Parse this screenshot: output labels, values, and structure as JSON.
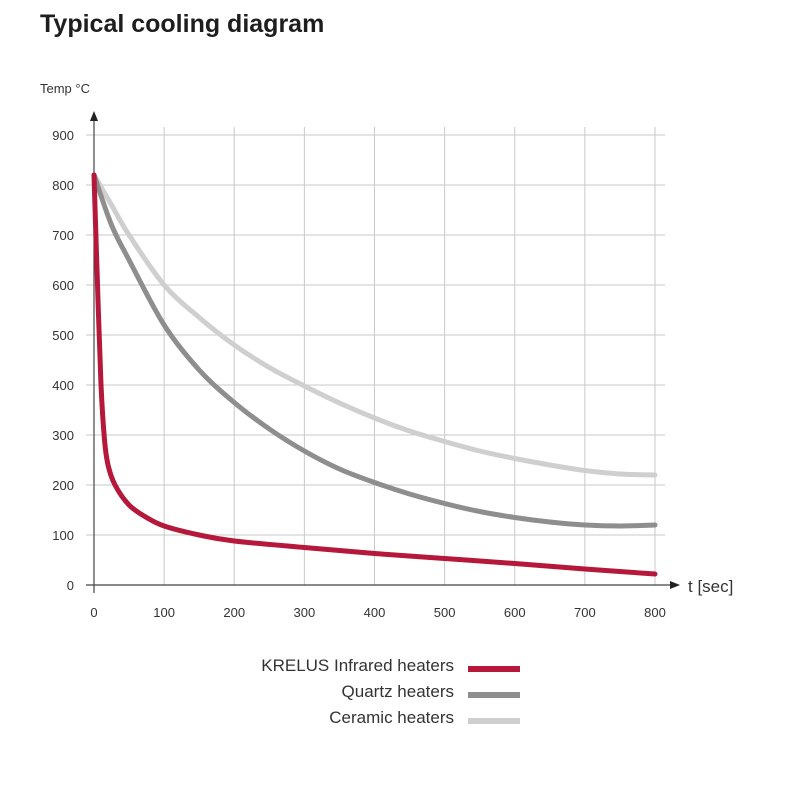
{
  "page": {
    "title": "Typical cooling diagram"
  },
  "chart_data": {
    "type": "line",
    "title": "Typical cooling diagram",
    "ylabel": "Temp °C",
    "xlabel": "t [sec]",
    "xlim": [
      0,
      800
    ],
    "ylim": [
      0,
      900
    ],
    "xticks": [
      0,
      100,
      200,
      300,
      400,
      500,
      600,
      700,
      800
    ],
    "yticks": [
      0,
      100,
      200,
      300,
      400,
      500,
      600,
      700,
      800,
      900
    ],
    "grid": true,
    "legend_position": "bottom",
    "series": [
      {
        "name": "KRELUS Infrared heaters",
        "color": "#b5183a",
        "x": [
          0,
          5,
          10,
          15,
          20,
          30,
          50,
          75,
          100,
          150,
          200,
          300,
          400,
          500,
          600,
          700,
          800
        ],
        "y": [
          820,
          600,
          400,
          290,
          240,
          200,
          160,
          135,
          118,
          100,
          88,
          75,
          63,
          53,
          43,
          32,
          22
        ]
      },
      {
        "name": "Quartz heaters",
        "color": "#8e8e8e",
        "x": [
          0,
          25,
          50,
          100,
          150,
          200,
          250,
          300,
          350,
          400,
          450,
          500,
          550,
          600,
          650,
          700,
          750,
          800
        ],
        "y": [
          820,
          720,
          650,
          520,
          430,
          365,
          312,
          268,
          232,
          205,
          182,
          163,
          147,
          135,
          126,
          120,
          118,
          120
        ]
      },
      {
        "name": "Ceramic heaters",
        "color": "#cfcfcf",
        "x": [
          0,
          25,
          50,
          100,
          150,
          200,
          250,
          300,
          350,
          400,
          450,
          500,
          550,
          600,
          650,
          700,
          750,
          800
        ],
        "y": [
          820,
          760,
          700,
          600,
          535,
          480,
          435,
          398,
          364,
          334,
          308,
          287,
          268,
          253,
          240,
          229,
          222,
          220
        ]
      }
    ]
  }
}
